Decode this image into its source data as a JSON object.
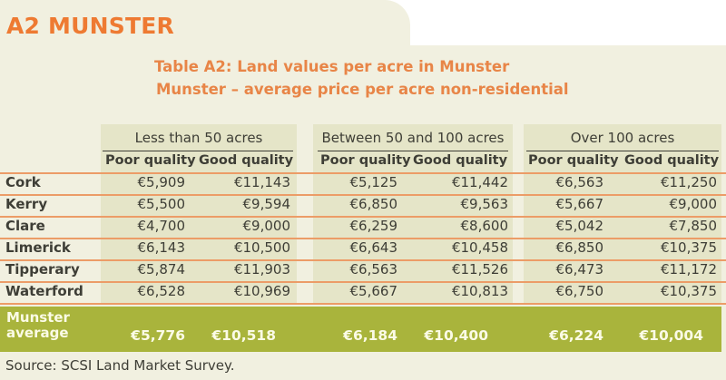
{
  "section_heading": "A2 MUNSTER",
  "table_title": "Table A2: Land values per acre in Munster",
  "table_subtitle": "Munster – average price per acre non-residential",
  "column_groups": [
    {
      "label": "Less than 50 acres",
      "sub": [
        "Poor quality",
        "Good quality"
      ]
    },
    {
      "label": "Between 50 and 100 acres",
      "sub": [
        "Poor quality",
        "Good quality"
      ]
    },
    {
      "label": "Over 100 acres",
      "sub": [
        "Poor quality",
        "Good quality"
      ]
    }
  ],
  "rows": [
    {
      "county": "Cork",
      "values": [
        "€5,909",
        "€11,143",
        "€5,125",
        "€11,442",
        "€6,563",
        "€11,250"
      ]
    },
    {
      "county": "Kerry",
      "values": [
        "€5,500",
        "€9,594",
        "€6,850",
        "€9,563",
        "€5,667",
        "€9,000"
      ]
    },
    {
      "county": "Clare",
      "values": [
        "€4,700",
        "€9,000",
        "€6,259",
        "€8,600",
        "€5,042",
        "€7,850"
      ]
    },
    {
      "county": "Limerick",
      "values": [
        "€6,143",
        "€10,500",
        "€6,643",
        "€10,458",
        "€6,850",
        "€10,375"
      ]
    },
    {
      "county": "Tipperary",
      "values": [
        "€5,874",
        "€11,903",
        "€6,563",
        "€11,526",
        "€6,473",
        "€11,172"
      ]
    },
    {
      "county": "Waterford",
      "values": [
        "€6,528",
        "€10,969",
        "€5,667",
        "€10,813",
        "€6,750",
        "€10,375"
      ]
    }
  ],
  "average": {
    "label_line1": "Munster",
    "label_line2": "average",
    "values": [
      "€5,776",
      "€10,518",
      "€6,184",
      "€10,400",
      "€6,224",
      "€10,004"
    ]
  },
  "source": "Source: SCSI Land Market Survey.",
  "colors": {
    "accent_orange": "#ee7a32",
    "average_green": "#a9b43c",
    "background": "#f1f0e0"
  }
}
